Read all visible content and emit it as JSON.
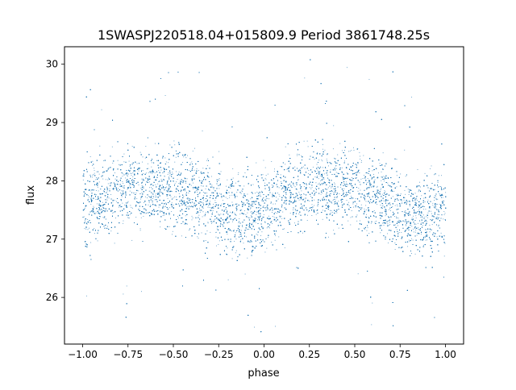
{
  "chart_data": {
    "type": "scatter",
    "title": "1SWASPJ220518.04+015809.9 Period 3861748.25s",
    "xlabel": "phase",
    "ylabel": "flux",
    "xlim": [
      -1.1,
      1.1
    ],
    "ylim": [
      25.2,
      30.3
    ],
    "xticks": [
      -1.0,
      -0.75,
      -0.5,
      -0.25,
      0.0,
      0.25,
      0.5,
      0.75,
      1.0
    ],
    "xtick_labels": [
      "−1.00",
      "−0.75",
      "−0.50",
      "−0.25",
      "0.00",
      "0.25",
      "0.50",
      "0.75",
      "1.00"
    ],
    "yticks": [
      26,
      27,
      28,
      29,
      30
    ],
    "ytick_labels": [
      "26",
      "27",
      "28",
      "29",
      "30"
    ],
    "grid": false,
    "legend": "none",
    "marker_color": "#1f77b4",
    "series": [
      {
        "description_of_trend": "dense light curve repeated over two phase cycles",
        "phase": [
          -1.0,
          -0.9,
          -0.8,
          -0.7,
          -0.6,
          -0.5,
          -0.4,
          -0.3,
          -0.2,
          -0.1,
          0.0,
          0.1,
          0.2,
          0.3,
          0.4,
          0.5,
          0.6,
          0.7,
          0.8,
          0.9,
          1.0
        ],
        "median_flux": [
          27.6,
          27.7,
          27.85,
          27.95,
          27.9,
          27.85,
          27.75,
          27.6,
          27.45,
          27.45,
          27.55,
          27.65,
          27.85,
          27.95,
          27.9,
          27.85,
          27.75,
          27.6,
          27.45,
          27.45,
          27.55
        ],
        "scatter_halfwidth": 0.45,
        "point_count_per_cycle": 9000
      }
    ]
  }
}
